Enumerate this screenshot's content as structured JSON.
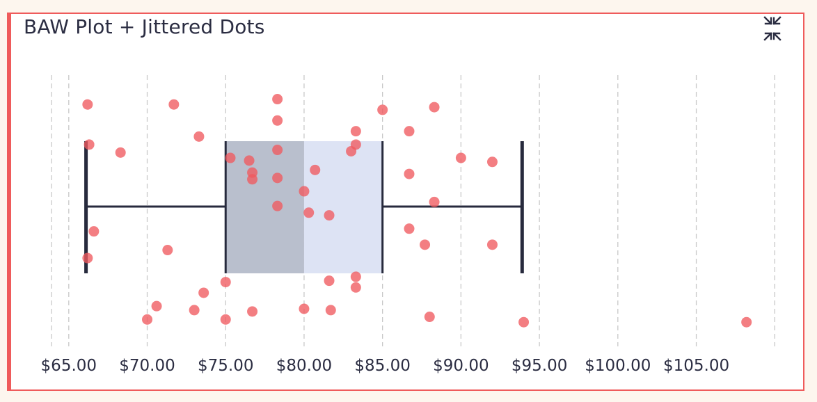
{
  "card": {
    "title": "BAW Plot + Jittered Dots",
    "collapse_icon": "collapse-arrows-icon"
  },
  "colors": {
    "accent": "#ef5b5b",
    "dot": "#f05a5f",
    "whisker": "#272a3d",
    "box_lower": "#b9bfcd",
    "box_upper": "#dde3f4",
    "grid": "#c8c8c8"
  },
  "chart_data": {
    "type": "boxplot_with_jitter",
    "xlim": [
      63.9,
      109.9
    ],
    "ticks": [
      65,
      70,
      75,
      80,
      85,
      90,
      95,
      100,
      105
    ],
    "tick_labels": [
      "$65.00",
      "$70.00",
      "$75.00",
      "$80.00",
      "$85.00",
      "$90.00",
      "$95.00",
      "$100.00",
      "$105.00"
    ],
    "extra_grid": [
      110
    ],
    "grid": true,
    "box": {
      "min": 66.1,
      "q1": 75,
      "median": 80,
      "q3": 85,
      "max": 93.9
    },
    "points": [
      {
        "x": 66.2,
        "y": 0.89
      },
      {
        "x": 71.7,
        "y": 0.89
      },
      {
        "x": 78.3,
        "y": 0.91
      },
      {
        "x": 85.0,
        "y": 0.87
      },
      {
        "x": 88.3,
        "y": 0.88
      },
      {
        "x": 78.3,
        "y": 0.83
      },
      {
        "x": 83.3,
        "y": 0.79
      },
      {
        "x": 86.7,
        "y": 0.79
      },
      {
        "x": 73.3,
        "y": 0.77
      },
      {
        "x": 66.3,
        "y": 0.74
      },
      {
        "x": 83.3,
        "y": 0.74
      },
      {
        "x": 68.3,
        "y": 0.71
      },
      {
        "x": 78.3,
        "y": 0.72
      },
      {
        "x": 83.0,
        "y": 0.715
      },
      {
        "x": 75.3,
        "y": 0.69
      },
      {
        "x": 76.5,
        "y": 0.68
      },
      {
        "x": 90.0,
        "y": 0.69
      },
      {
        "x": 92.0,
        "y": 0.675
      },
      {
        "x": 76.7,
        "y": 0.635
      },
      {
        "x": 80.7,
        "y": 0.645
      },
      {
        "x": 86.7,
        "y": 0.63
      },
      {
        "x": 76.7,
        "y": 0.61
      },
      {
        "x": 78.3,
        "y": 0.615
      },
      {
        "x": 80.0,
        "y": 0.565
      },
      {
        "x": 88.3,
        "y": 0.525
      },
      {
        "x": 78.3,
        "y": 0.51
      },
      {
        "x": 80.3,
        "y": 0.485
      },
      {
        "x": 81.6,
        "y": 0.475
      },
      {
        "x": 66.6,
        "y": 0.415
      },
      {
        "x": 86.7,
        "y": 0.425
      },
      {
        "x": 87.7,
        "y": 0.365
      },
      {
        "x": 92.0,
        "y": 0.365
      },
      {
        "x": 71.3,
        "y": 0.345
      },
      {
        "x": 66.2,
        "y": 0.315
      },
      {
        "x": 83.3,
        "y": 0.245
      },
      {
        "x": 75.0,
        "y": 0.225
      },
      {
        "x": 81.6,
        "y": 0.23
      },
      {
        "x": 83.3,
        "y": 0.205
      },
      {
        "x": 73.6,
        "y": 0.185
      },
      {
        "x": 70.6,
        "y": 0.135
      },
      {
        "x": 73.0,
        "y": 0.12
      },
      {
        "x": 76.7,
        "y": 0.115
      },
      {
        "x": 80.0,
        "y": 0.125
      },
      {
        "x": 81.7,
        "y": 0.12
      },
      {
        "x": 70.0,
        "y": 0.085
      },
      {
        "x": 75.0,
        "y": 0.085
      },
      {
        "x": 88.0,
        "y": 0.095
      },
      {
        "x": 94.0,
        "y": 0.075
      },
      {
        "x": 108.2,
        "y": 0.075
      }
    ]
  }
}
